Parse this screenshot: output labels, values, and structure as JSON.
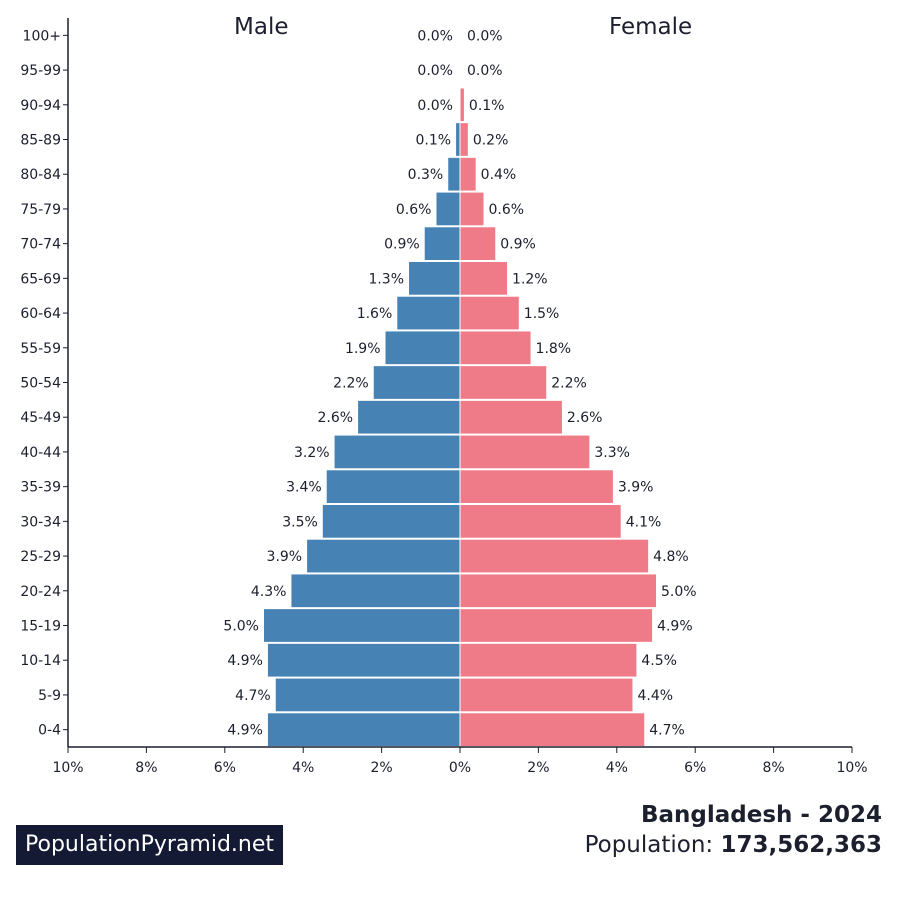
{
  "chart_data": {
    "type": "bar",
    "subtype": "population-pyramid",
    "categories": [
      "0-4",
      "5-9",
      "10-14",
      "15-19",
      "20-24",
      "25-29",
      "30-34",
      "35-39",
      "40-44",
      "45-49",
      "50-54",
      "55-59",
      "60-64",
      "65-69",
      "70-74",
      "75-79",
      "80-84",
      "85-89",
      "90-94",
      "95-99",
      "100+"
    ],
    "series": [
      {
        "name": "Male",
        "side": "left",
        "color": "#4682b4",
        "values": [
          4.9,
          4.7,
          4.9,
          5.0,
          4.3,
          3.9,
          3.5,
          3.4,
          3.2,
          2.6,
          2.2,
          1.9,
          1.6,
          1.3,
          0.9,
          0.6,
          0.3,
          0.1,
          0.0,
          0.0,
          0.0
        ],
        "labels": [
          "4.9%",
          "4.7%",
          "4.9%",
          "5.0%",
          "4.3%",
          "3.9%",
          "3.5%",
          "3.4%",
          "3.2%",
          "2.6%",
          "2.2%",
          "1.9%",
          "1.6%",
          "1.3%",
          "0.9%",
          "0.6%",
          "0.3%",
          "0.1%",
          "0.0%",
          "0.0%",
          "0.0%"
        ]
      },
      {
        "name": "Female",
        "side": "right",
        "color": "#ef7b89",
        "values": [
          4.7,
          4.4,
          4.5,
          4.9,
          5.0,
          4.8,
          4.1,
          3.9,
          3.3,
          2.6,
          2.2,
          1.8,
          1.5,
          1.2,
          0.9,
          0.6,
          0.4,
          0.2,
          0.1,
          0.0,
          0.0
        ],
        "labels": [
          "4.7%",
          "4.4%",
          "4.5%",
          "4.9%",
          "5.0%",
          "4.8%",
          "4.1%",
          "3.9%",
          "3.3%",
          "2.6%",
          "2.2%",
          "1.8%",
          "1.5%",
          "1.2%",
          "0.9%",
          "0.6%",
          "0.4%",
          "0.2%",
          "0.1%",
          "0.0%",
          "0.0%"
        ]
      }
    ],
    "xlim": [
      -10,
      10
    ],
    "x_ticks": [
      "10%",
      "8%",
      "6%",
      "4%",
      "2%",
      "0%",
      "2%",
      "4%",
      "6%",
      "8%",
      "10%"
    ],
    "x_tick_values": [
      -10,
      -8,
      -6,
      -4,
      -2,
      0,
      2,
      4,
      6,
      8,
      10
    ],
    "grid": false
  },
  "headers": {
    "male": "Male",
    "female": "Female"
  },
  "info": {
    "country_year": "Bangladesh - 2024",
    "population_label": "Population:",
    "population_value": "173,562,363"
  },
  "logo": {
    "text": "PopulationPyramid.net"
  }
}
